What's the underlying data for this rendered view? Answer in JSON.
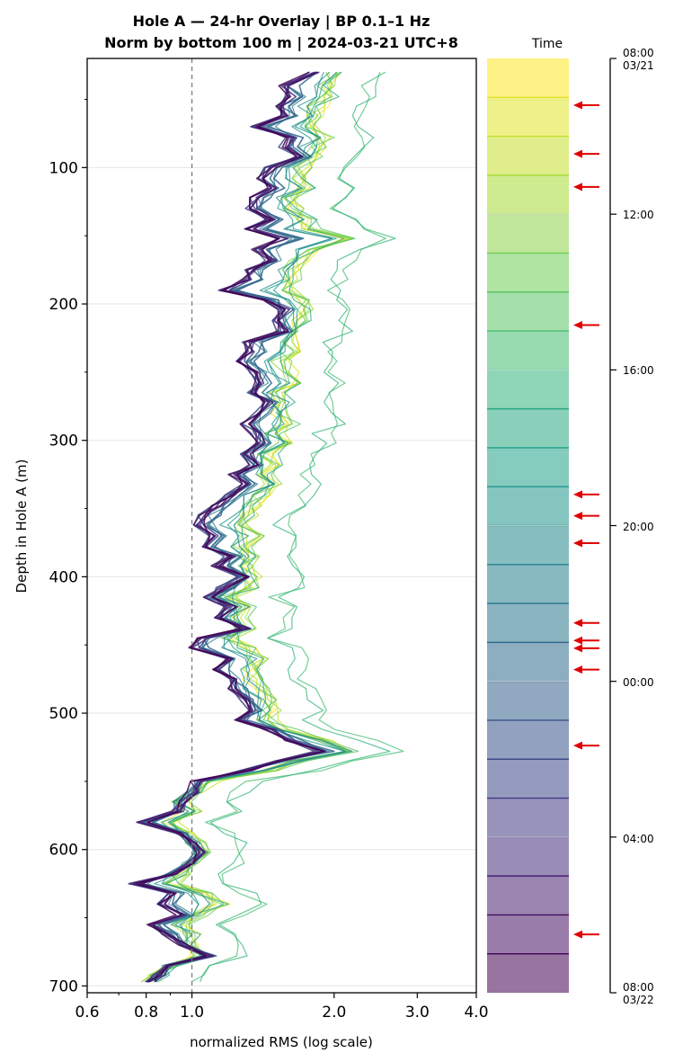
{
  "chart_data": {
    "type": "line",
    "title": "Hole A — 24-hr Overlay  |  BP 0.1–1 Hz",
    "subtitle": "Norm by bottom 100 m  |  2024-03-21 UTC+8",
    "xlabel": "normalized RMS  (log scale)",
    "ylabel": "Depth in Hole A (m)",
    "xscale": "log",
    "xlim": [
      0.6,
      4.0
    ],
    "ylim": [
      20,
      705
    ],
    "y_inverted": true,
    "x_ticks": [
      0.6,
      0.8,
      1.0,
      2.0,
      3.0,
      4.0
    ],
    "x_tick_labels": [
      "0.6",
      "0.8",
      "1.0",
      "2.0",
      "3.0",
      "4.0"
    ],
    "y_ticks": [
      100,
      200,
      300,
      400,
      500,
      600,
      700
    ],
    "y_tick_labels": [
      "100",
      "200",
      "300",
      "400",
      "500",
      "600",
      "700"
    ],
    "reference_line_x": 1.0,
    "grid": "horizontal",
    "colorbar": {
      "label": "Time",
      "colormap": "viridis",
      "direction": "top = 08:00 03/21 (yellow) → bottom = 08:00 03/22 (purple)",
      "n_bands": 24,
      "tick_labels": [
        "08:00\n03/21",
        "12:00",
        "16:00",
        "20:00",
        "00:00",
        "04:00",
        "08:00\n03/22"
      ],
      "tick_hours": [
        0,
        4,
        8,
        12,
        16,
        20,
        24
      ],
      "arrow_hours": [
        1.2,
        2.45,
        3.3,
        6.85,
        11.2,
        11.75,
        12.45,
        14.5,
        14.95,
        15.15,
        15.7,
        17.65,
        22.5
      ],
      "arrow_color": "#e00000"
    },
    "depth_profile": {
      "depth": [
        30,
        40,
        48,
        55,
        62,
        70,
        78,
        85,
        92,
        100,
        108,
        115,
        122,
        130,
        138,
        145,
        152,
        160,
        168,
        175,
        182,
        190,
        197,
        204,
        212,
        220,
        228,
        235,
        242,
        250,
        258,
        265,
        272,
        280,
        288,
        295,
        302,
        310,
        318,
        325,
        332,
        340,
        348,
        355,
        362,
        370,
        378,
        385,
        392,
        400,
        408,
        415,
        422,
        430,
        438,
        445,
        452,
        460,
        468,
        475,
        482,
        490,
        498,
        505,
        512,
        520,
        528,
        535,
        542,
        550,
        558,
        565,
        572,
        580,
        588,
        595,
        602,
        610,
        618,
        625,
        632,
        640,
        648,
        655,
        662,
        670,
        678,
        685,
        692,
        697
      ],
      "late_night_rms": [
        1.8,
        1.55,
        1.6,
        1.5,
        1.58,
        1.35,
        1.6,
        1.55,
        1.7,
        1.45,
        1.4,
        1.48,
        1.35,
        1.32,
        1.45,
        1.3,
        1.52,
        1.35,
        1.45,
        1.32,
        1.3,
        1.15,
        1.42,
        1.55,
        1.48,
        1.55,
        1.3,
        1.32,
        1.26,
        1.35,
        1.38,
        1.32,
        1.45,
        1.38,
        1.28,
        1.35,
        1.4,
        1.3,
        1.35,
        1.22,
        1.28,
        1.2,
        1.12,
        1.05,
        1.02,
        1.1,
        1.06,
        1.2,
        1.12,
        1.28,
        1.15,
        1.08,
        1.2,
        1.12,
        1.3,
        1.05,
        1.0,
        1.18,
        1.1,
        1.2,
        1.22,
        1.28,
        1.35,
        1.25,
        1.45,
        1.6,
        1.85,
        1.5,
        1.3,
        1.02,
        1.0,
        0.95,
        0.93,
        0.78,
        0.95,
        1.0,
        1.05,
        0.98,
        0.9,
        0.75,
        0.9,
        0.85,
        0.95,
        0.82,
        0.87,
        0.95,
        1.1,
        0.88,
        0.85,
        0.82
      ],
      "daytime_rms": [
        2.0,
        1.92,
        1.95,
        1.85,
        1.8,
        1.78,
        1.92,
        1.85,
        1.8,
        1.72,
        1.68,
        1.75,
        1.62,
        1.65,
        1.75,
        1.78,
        2.15,
        1.8,
        1.7,
        1.62,
        1.66,
        1.58,
        1.7,
        1.75,
        1.72,
        1.68,
        1.6,
        1.62,
        1.55,
        1.6,
        1.62,
        1.52,
        1.58,
        1.55,
        1.62,
        1.5,
        1.55,
        1.45,
        1.5,
        1.42,
        1.5,
        1.4,
        1.35,
        1.32,
        1.25,
        1.35,
        1.28,
        1.32,
        1.3,
        1.35,
        1.32,
        1.2,
        1.3,
        1.25,
        1.3,
        1.22,
        1.3,
        1.38,
        1.35,
        1.35,
        1.4,
        1.45,
        1.48,
        1.45,
        1.6,
        1.9,
        2.2,
        1.7,
        1.45,
        1.1,
        1.02,
        0.95,
        1.0,
        0.9,
        0.98,
        1.02,
        1.05,
        1.0,
        0.95,
        0.9,
        1.05,
        1.15,
        1.05,
        0.95,
        1.0,
        0.98,
        1.05,
        0.9,
        0.85,
        0.82
      ]
    }
  },
  "labels": {
    "title": "Hole A — 24-hr Overlay  |  BP 0.1–1 Hz",
    "subtitle": "Norm by bottom 100 m  |  2024-03-21 UTC+8",
    "xlabel": "normalized RMS  (log scale)",
    "ylabel": "Depth in Hole A (m)",
    "colorbar_label": "Time",
    "ct0_a": "08:00",
    "ct0_b": "03/21",
    "ct1": "12:00",
    "ct2": "16:00",
    "ct3": "20:00",
    "ct4": "00:00",
    "ct5": "04:00",
    "ct6_a": "08:00",
    "ct6_b": "03/22"
  }
}
